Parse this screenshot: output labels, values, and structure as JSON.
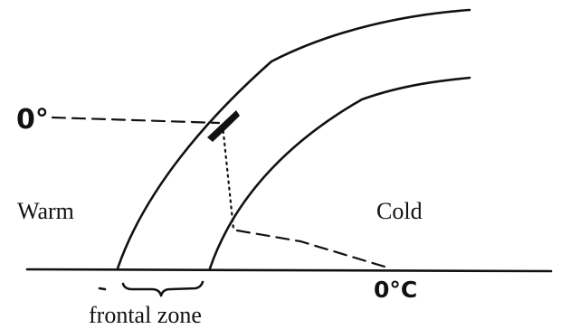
{
  "labels": {
    "freezing_level": "0°",
    "warm_side": "Warm",
    "cold_side": "Cold",
    "surface_temp": "0°C",
    "frontal_zone": "frontal zone"
  }
}
